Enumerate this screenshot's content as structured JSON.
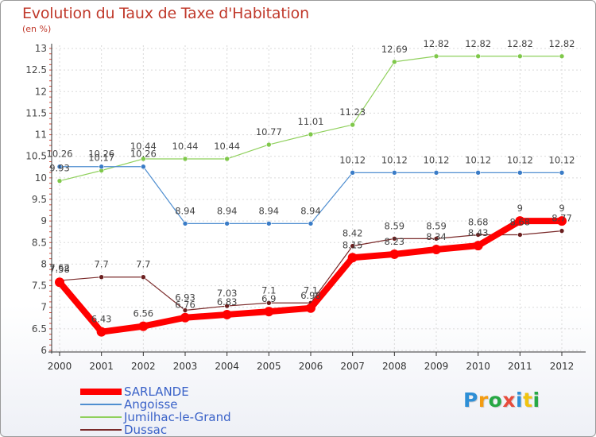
{
  "title": "Evolution du Taux de Taxe d'Habitation",
  "subtitle": "(en %)",
  "chart_data": {
    "type": "line",
    "x": [
      2000,
      2001,
      2002,
      2003,
      2004,
      2005,
      2006,
      2007,
      2008,
      2009,
      2010,
      2011,
      2012
    ],
    "ylim": [
      6,
      13
    ],
    "yticks": [
      "6",
      "6.5",
      "7",
      "7.5",
      "8",
      "8.5",
      "9",
      "9.5",
      "10",
      "10.5",
      "11",
      "11.5",
      "12",
      "12.5",
      "13"
    ],
    "grid": true,
    "legend_position": "bottom-left",
    "series": [
      {
        "name": "SARLANDE",
        "color": "#ff0000",
        "values": [
          7.58,
          6.43,
          6.56,
          6.76,
          6.83,
          6.9,
          6.98,
          8.15,
          8.23,
          8.34,
          8.43,
          9,
          9
        ],
        "labels": [
          "7.58",
          "6.43",
          "6.56",
          "6.76",
          "6.83",
          "6.9",
          "6.98",
          "8.15",
          "8.23",
          "8.34",
          "8.43",
          "9",
          "9"
        ]
      },
      {
        "name": "Angoisse",
        "color": "#4f8ed0",
        "values": [
          10.26,
          10.26,
          10.26,
          8.94,
          8.94,
          8.94,
          8.94,
          10.12,
          10.12,
          10.12,
          10.12,
          10.12,
          10.12
        ],
        "labels": [
          "10.26",
          "10.26",
          "10.26",
          "8.94",
          "8.94",
          "8.94",
          "8.94",
          "10.12",
          "10.12",
          "10.12",
          "10.12",
          "10.12",
          "10.12"
        ]
      },
      {
        "name": "Jumilhac-le-Grand",
        "color": "#8fd05c",
        "values": [
          9.93,
          10.17,
          10.44,
          10.44,
          10.44,
          10.77,
          11.01,
          11.23,
          12.69,
          12.82,
          12.82,
          12.82,
          12.82
        ],
        "labels": [
          "9.93",
          "10.17",
          "10.44",
          "10.44",
          "10.44",
          "10.77",
          "11.01",
          "11.23",
          "12.69",
          "12.82",
          "12.82",
          "12.82",
          "12.82"
        ]
      },
      {
        "name": "Dussac",
        "color": "#7a2a2a",
        "values": [
          7.62,
          7.7,
          7.7,
          6.93,
          7.03,
          7.1,
          7.1,
          8.42,
          8.59,
          8.59,
          8.68,
          8.68,
          8.77
        ],
        "labels": [
          "7.62",
          "7.7",
          "7.7",
          "6.93",
          "7.03",
          "7.1",
          "7.1",
          "8.42",
          "8.59",
          "8.59",
          "8.68",
          "8.68",
          "8.77"
        ]
      }
    ]
  },
  "logo": {
    "letters": [
      {
        "ch": "P",
        "color": "#2e8fd6"
      },
      {
        "ch": "r",
        "color": "#f39c12"
      },
      {
        "ch": "o",
        "color": "#27a844"
      },
      {
        "ch": "x",
        "color": "#e74c3c"
      },
      {
        "ch": "i",
        "color": "#2e8fd6"
      },
      {
        "ch": "t",
        "color": "#f1c40f"
      },
      {
        "ch": "i",
        "color": "#27a844"
      }
    ]
  }
}
